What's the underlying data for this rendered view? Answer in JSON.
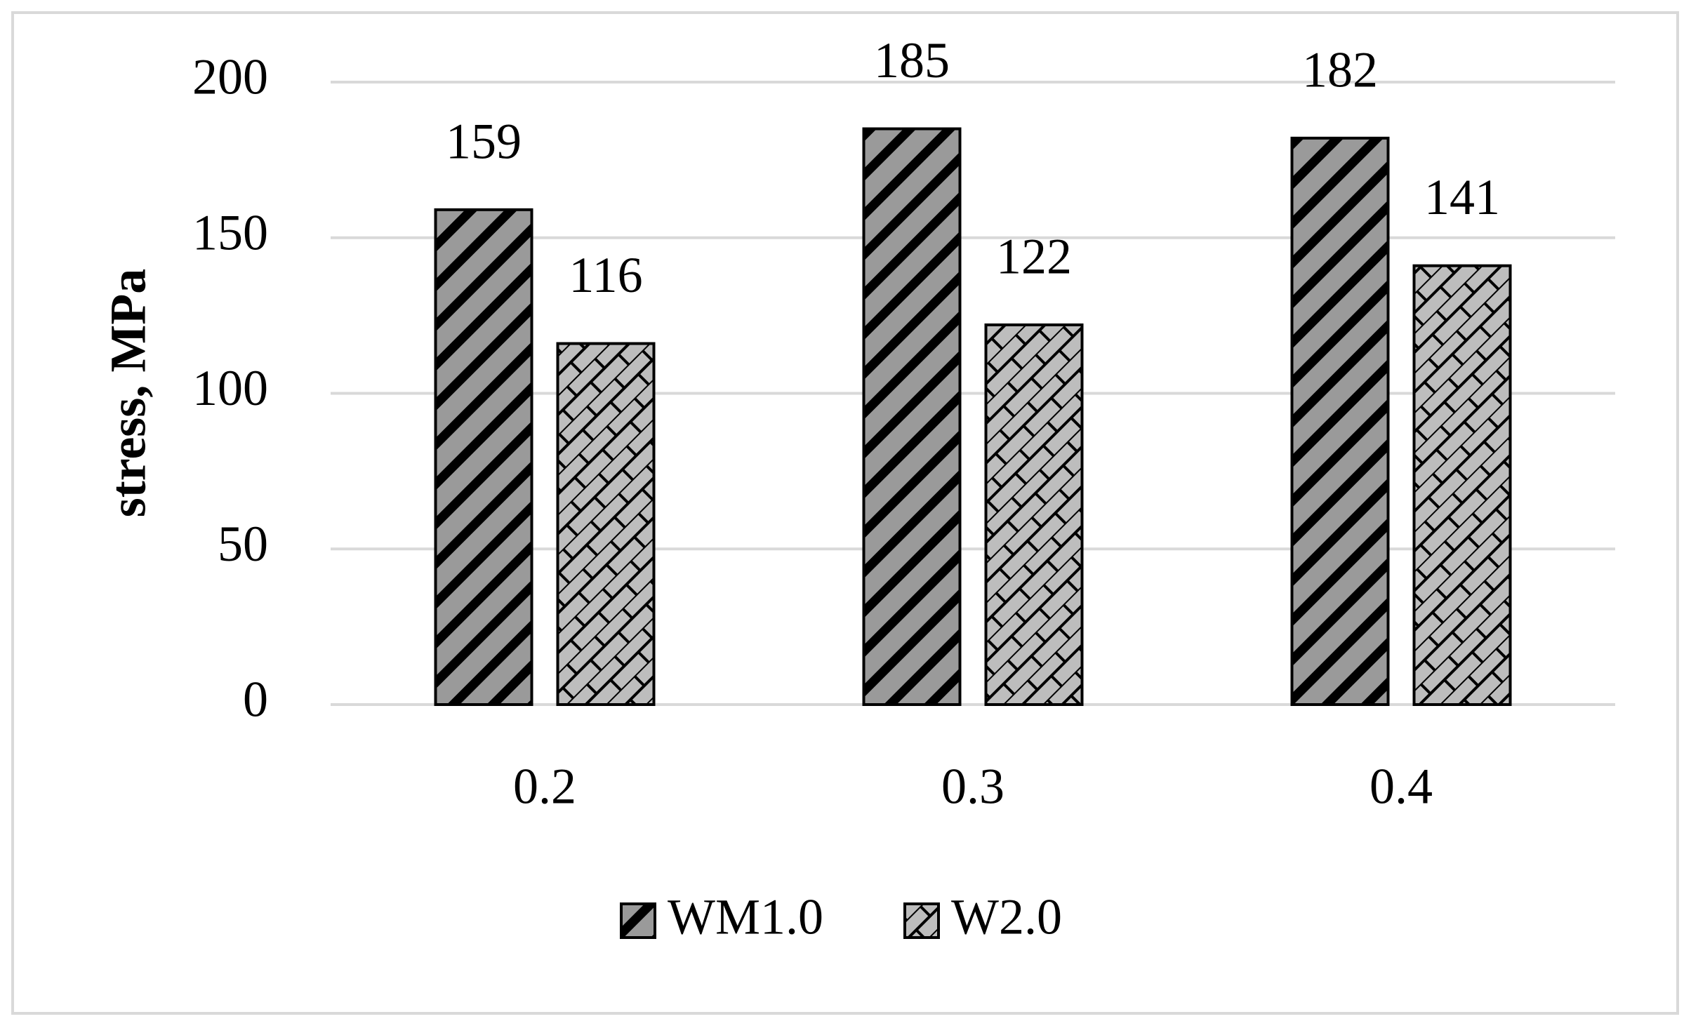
{
  "chart_data": {
    "type": "bar",
    "y_label": "stress, MPa",
    "categories": [
      "0.2",
      "0.3",
      "0.4"
    ],
    "series": [
      {
        "name": "WM1.0",
        "color": "#9a9a9a",
        "values": [
          159,
          185,
          182
        ]
      },
      {
        "name": "W2.0",
        "color": "#bdbdbd",
        "values": [
          116,
          122,
          141
        ]
      }
    ],
    "ylim": [
      0,
      200
    ],
    "yticks": [
      0,
      50,
      100,
      150,
      200
    ],
    "grid": true,
    "legend": "bottom"
  }
}
